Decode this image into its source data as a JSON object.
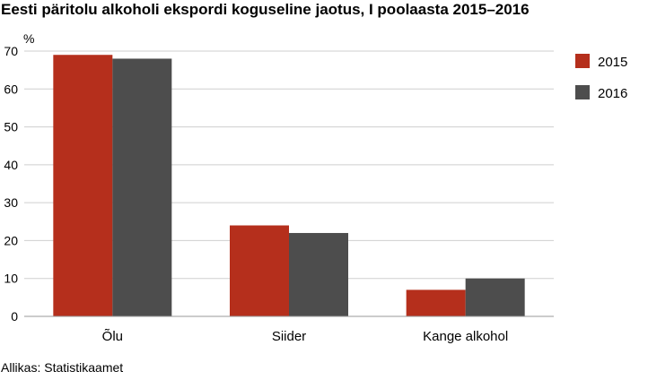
{
  "title": "Eesti päritolu alkoholi ekspordi koguseline jaotus, I poolaasta 2015–2016",
  "source": "Allikas: Statistikaamet",
  "colors": {
    "s2015": "#b52f1c",
    "s2016": "#4d4d4d",
    "grid": "#cfcfcf",
    "axis": "#999999"
  },
  "chart_data": {
    "type": "bar",
    "title": "Eesti päritolu alkoholi ekspordi koguseline jaotus, I poolaasta 2015–2016",
    "ylabel": "%",
    "xlabel": "",
    "ylim": [
      0,
      70
    ],
    "yticks": [
      0,
      10,
      20,
      30,
      40,
      50,
      60,
      70
    ],
    "grid": true,
    "legend": "right",
    "categories": [
      "Õlu",
      "Siider",
      "Kange alkohol"
    ],
    "series": [
      {
        "name": "2015",
        "values": [
          69,
          24,
          7
        ]
      },
      {
        "name": "2016",
        "values": [
          68,
          22,
          10
        ]
      }
    ]
  }
}
